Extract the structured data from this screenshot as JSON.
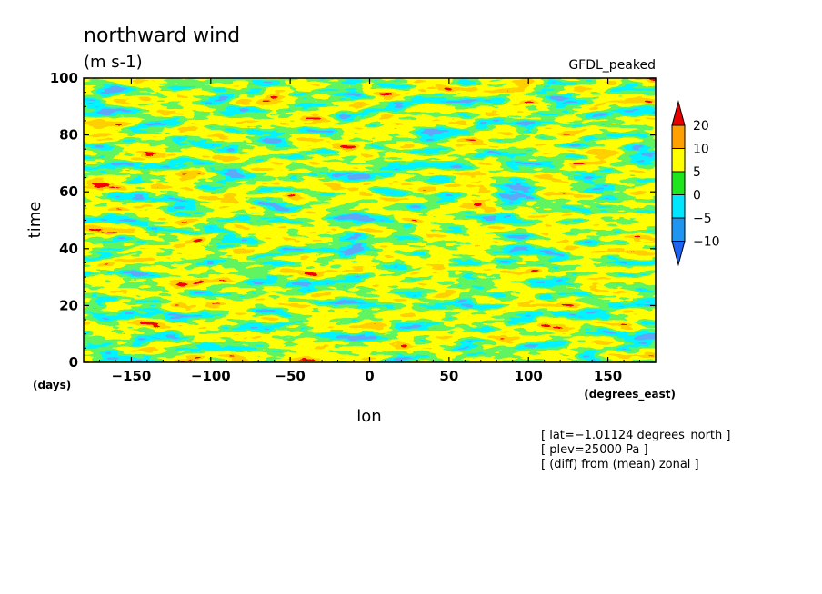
{
  "chart_data": {
    "type": "heatmap",
    "title": "northward wind",
    "subtitle": "(m s-1)",
    "model_label": "GFDL_peaked",
    "xlabel": "lon",
    "ylabel": "time",
    "x_unit": "(degrees_east)",
    "y_unit": "(days)",
    "xlim": [
      -180,
      180
    ],
    "ylim": [
      0,
      100
    ],
    "x_ticks": [
      -150,
      -100,
      -50,
      0,
      50,
      100,
      150
    ],
    "y_ticks": [
      0,
      20,
      40,
      60,
      80,
      100
    ],
    "x_tick_labels": [
      "−150",
      "−100",
      "−50",
      "0",
      "50",
      "100",
      "150"
    ],
    "y_tick_labels": [
      "0",
      "20",
      "40",
      "60",
      "80",
      "100"
    ],
    "colorbar": {
      "levels": [
        -10,
        -5,
        0,
        5,
        10,
        20
      ],
      "level_labels": [
        "−10",
        "−5",
        "0",
        "5",
        "10",
        "20"
      ],
      "colors": [
        "#1e64f0",
        "#1e96f0",
        "#00e6ff",
        "#1ee61e",
        "#ffff00",
        "#ffa000",
        "#e60000"
      ]
    },
    "annotations": [
      "[ lat=−1.01124 degrees_north ]",
      "[ plev=25000 Pa ]",
      "[ (diff) from (mean) zonal ]"
    ]
  }
}
